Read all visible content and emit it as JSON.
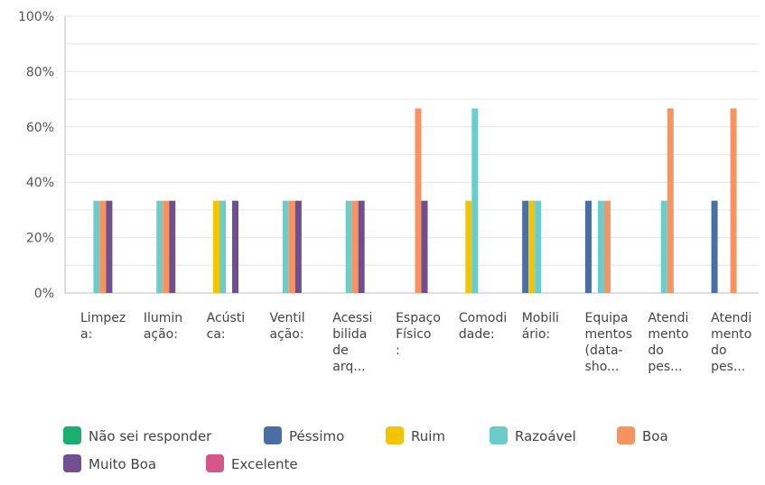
{
  "chart_data": {
    "type": "bar",
    "yticks": [
      "0%",
      "20%",
      "40%",
      "60%",
      "80%",
      "100%"
    ],
    "ylim": [
      0,
      100
    ],
    "categories": [
      {
        "label_lines": [
          "Limpez",
          "a:"
        ]
      },
      {
        "label_lines": [
          "Ilumin",
          "ação:"
        ]
      },
      {
        "label_lines": [
          "Acústi",
          "ca:"
        ]
      },
      {
        "label_lines": [
          "Ventil",
          "ação:"
        ]
      },
      {
        "label_lines": [
          "Acessi",
          "bilida",
          "de",
          "arq..."
        ]
      },
      {
        "label_lines": [
          "Espaço",
          "Físico",
          ":"
        ]
      },
      {
        "label_lines": [
          "Comodi",
          "dade:"
        ]
      },
      {
        "label_lines": [
          "Mobili",
          "ário:"
        ]
      },
      {
        "label_lines": [
          "Equipa",
          "mentos",
          "(data-",
          "sho..."
        ]
      },
      {
        "label_lines": [
          "Atendi",
          "mento",
          "do",
          "pes..."
        ]
      },
      {
        "label_lines": [
          "Atendi",
          "mento",
          "do",
          "pes..."
        ]
      }
    ],
    "series": [
      {
        "name": "Não sei responder",
        "color": "#1aae6f",
        "values": [
          0,
          0,
          0,
          0,
          0,
          0,
          0,
          0,
          0,
          0,
          0
        ]
      },
      {
        "name": "Péssimo",
        "color": "#4a6fa5",
        "values": [
          0,
          0,
          0,
          0,
          0,
          0,
          0,
          33.33,
          33.33,
          0,
          33.33
        ]
      },
      {
        "name": "Ruim",
        "color": "#f5c400",
        "values": [
          0,
          0,
          33.33,
          0,
          0,
          0,
          33.33,
          33.33,
          0,
          0,
          0
        ]
      },
      {
        "name": "Razoável",
        "color": "#6ccccc",
        "values": [
          33.33,
          33.33,
          33.33,
          33.33,
          33.33,
          0,
          66.67,
          33.33,
          33.33,
          33.33,
          0
        ]
      },
      {
        "name": "Boa",
        "color": "#f7935f",
        "values": [
          33.33,
          33.33,
          0,
          33.33,
          33.33,
          66.67,
          0,
          0,
          33.33,
          66.67,
          66.67
        ]
      },
      {
        "name": "Muito Boa",
        "color": "#6f4f8f",
        "values": [
          33.33,
          33.33,
          33.33,
          33.33,
          33.33,
          33.33,
          0,
          0,
          0,
          0,
          0
        ]
      },
      {
        "name": "Excelente",
        "color": "#d6568c",
        "values": [
          0,
          0,
          0,
          0,
          0,
          0,
          0,
          0,
          0,
          0,
          0
        ]
      }
    ],
    "grid": true,
    "legend_position": "bottom"
  }
}
